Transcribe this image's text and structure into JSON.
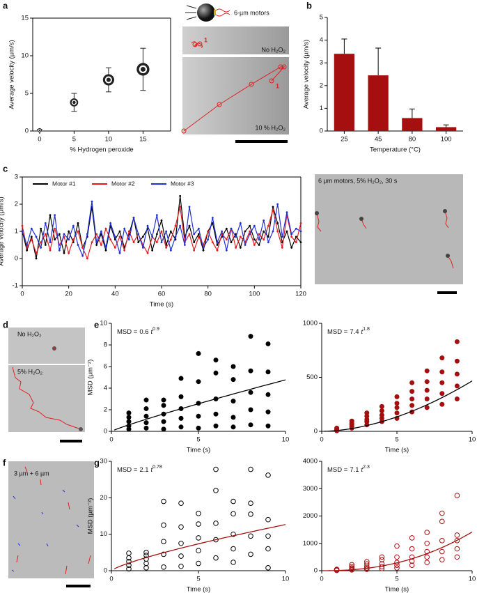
{
  "panel_labels": [
    "a",
    "b",
    "c",
    "d",
    "e",
    "f",
    "g"
  ],
  "images": {
    "a": {
      "caption": "6-µm motors",
      "top": "No H₂O₂",
      "bottom": "10 % H₂O₂",
      "marker_top": "1",
      "marker_bottom": "1"
    },
    "c": {
      "caption": "6 µm motors, 5% H₂O₂, 30 s"
    },
    "d": {
      "top": "No H₂O₂",
      "bottom": "5% H₂O₂"
    },
    "f": {
      "caption": "3 µm + 6 µm"
    }
  },
  "chart_data": [
    {
      "type": "errorscatter",
      "x": [
        0,
        5,
        10,
        15
      ],
      "values": [
        0.1,
        3.8,
        6.8,
        8.2
      ],
      "errors": [
        0.1,
        1.2,
        1.6,
        2.8
      ],
      "color": "#222222",
      "xlim": [
        -1,
        19
      ],
      "xticks": [
        0,
        5,
        10,
        15
      ],
      "ylim": [
        0,
        15
      ],
      "yticks": [
        0,
        5,
        10,
        15
      ],
      "xlabel": "% Hydrogen peroxide",
      "ylabel": "Average velocity (µm/s)"
    },
    {
      "type": "bar",
      "categories": [
        "25",
        "45",
        "80",
        "100"
      ],
      "values": [
        3.4,
        2.45,
        0.57,
        0.17
      ],
      "errors": [
        0.65,
        1.2,
        0.4,
        0.1
      ],
      "color": "#a50f0f",
      "ylim": [
        0,
        5
      ],
      "yticks": [
        0,
        1,
        2,
        3,
        4,
        5
      ],
      "xlabel": "Temperature (°C)",
      "ylabel": "Average velocity (µm/s)"
    },
    {
      "type": "line",
      "legend": "top-left",
      "x": [
        0,
        2,
        4,
        6,
        8,
        10,
        12,
        14,
        16,
        18,
        20,
        22,
        24,
        26,
        28,
        30,
        32,
        34,
        36,
        38,
        40,
        42,
        44,
        46,
        48,
        50,
        52,
        54,
        56,
        58,
        60,
        62,
        64,
        66,
        68,
        70,
        72,
        74,
        76,
        78,
        80,
        82,
        84,
        86,
        88,
        90,
        92,
        94,
        96,
        98,
        100,
        102,
        104,
        106,
        108,
        110,
        112,
        114,
        116,
        118,
        120
      ],
      "series": [
        {
          "name": "Motor #1",
          "color": "#000000",
          "values": [
            1.0,
            0.3,
            0.8,
            0.0,
            1.1,
            0.5,
            1.6,
            0.7,
            0.9,
            0.2,
            1.0,
            0.6,
            1.3,
            0.4,
            0.8,
            1.9,
            0.5,
            0.9,
            0.3,
            1.2,
            0.7,
            1.0,
            0.4,
            0.9,
            1.5,
            0.6,
            0.8,
            1.1,
            0.3,
            0.9,
            1.4,
            0.5,
            1.0,
            0.7,
            2.3,
            0.8,
            1.2,
            0.6,
            0.9,
            0.3,
            1.0,
            1.3,
            0.5,
            0.8,
            1.1,
            0.6,
            0.9,
            0.4,
            1.0,
            1.2,
            0.7,
            0.5,
            1.0,
            0.8,
            1.9,
            1.3,
            0.6,
            1.0,
            0.4,
            0.8,
            0.6
          ]
        },
        {
          "name": "Motor #2",
          "color": "#e41a1c",
          "values": [
            1.2,
            0.4,
            0.7,
            0.2,
            0.6,
            0.9,
            0.3,
            1.1,
            0.5,
            0.8,
            0.2,
            0.7,
            1.0,
            0.4,
            0.0,
            0.6,
            0.9,
            0.5,
            1.1,
            0.7,
            0.4,
            0.8,
            0.3,
            1.0,
            0.6,
            0.9,
            0.5,
            0.2,
            0.8,
            0.6,
            1.0,
            0.4,
            0.7,
            1.2,
            1.9,
            0.6,
            0.9,
            0.3,
            0.8,
            0.5,
            1.0,
            0.6,
            0.3,
            0.9,
            0.7,
            1.1,
            0.4,
            0.8,
            0.6,
            1.0,
            0.5,
            0.9,
            0.7,
            1.2,
            1.8,
            1.0,
            0.4,
            1.6,
            0.8,
            0.6,
            1.3
          ]
        },
        {
          "name": "Motor #3",
          "color": "#1f2fd6",
          "values": [
            1.0,
            0.5,
            1.1,
            0.8,
            0.4,
            1.3,
            0.6,
            1.6,
            0.3,
            0.9,
            0.7,
            1.2,
            0.5,
            0.1,
            0.9,
            2.1,
            0.6,
            1.0,
            0.4,
            1.3,
            0.8,
            0.2,
            1.1,
            0.7,
            1.5,
            0.9,
            0.4,
            1.2,
            0.8,
            1.6,
            0.6,
            1.0,
            0.3,
            0.8,
            1.2,
            0.5,
            1.9,
            0.9,
            1.1,
            0.4,
            0.7,
            1.5,
            0.6,
            1.0,
            0.3,
            1.1,
            0.8,
            1.3,
            0.5,
            0.9,
            1.2,
            0.7,
            1.4,
            0.6,
            1.0,
            2.0,
            0.8,
            1.7,
            0.9,
            1.1,
            1.0
          ]
        }
      ],
      "xlim": [
        0,
        120
      ],
      "xticks": [
        0,
        20,
        40,
        60,
        80,
        100,
        120
      ],
      "ylim": [
        -1,
        3
      ],
      "yticks": [
        -1,
        0,
        1,
        2,
        3
      ],
      "xlabel": "Time (s)",
      "ylabel": "Average velocity (µm/s)"
    },
    {
      "type": "scatter",
      "color": "#000000",
      "filled": true,
      "x": [
        1,
        1,
        1,
        1,
        1,
        2,
        2,
        2,
        2,
        2,
        3,
        3,
        3,
        3,
        3,
        4,
        4,
        4,
        4,
        4,
        5,
        5,
        5,
        5,
        5,
        6,
        6,
        6,
        6,
        6,
        7,
        7,
        7,
        7,
        7,
        8,
        8,
        8,
        8,
        8,
        9,
        9,
        9,
        9,
        9
      ],
      "y": [
        0.2,
        0.5,
        0.9,
        1.3,
        1.7,
        0.3,
        0.8,
        1.4,
        2.1,
        2.9,
        0.2,
        0.9,
        1.6,
        2.4,
        2.9,
        0.4,
        1.2,
        2.1,
        3.2,
        4.9,
        0.3,
        1.4,
        2.6,
        4.6,
        7.2,
        0.5,
        1.6,
        3.0,
        5.4,
        6.6,
        0.4,
        1.3,
        2.8,
        4.8,
        6.0,
        0.6,
        2.0,
        3.6,
        5.6,
        8.8,
        0.5,
        1.8,
        3.4,
        5.5,
        8.1
      ],
      "annotation": {
        "lhs": "MSD =",
        "coefficient": 0.6,
        "variable": "t",
        "exponent": 0.9
      },
      "fit_color": "#000000",
      "xlim": [
        0,
        10
      ],
      "xticks": [
        0,
        5,
        10
      ],
      "ylim": [
        0,
        10
      ],
      "yticks": [
        0,
        2,
        4,
        6,
        8,
        10
      ],
      "xlabel": "Time (s)",
      "ylabel": "MSD (µm⁻²)"
    },
    {
      "type": "scatter",
      "color": "#a50f0f",
      "filled": true,
      "x": [
        1,
        1,
        1,
        1,
        1,
        2,
        2,
        2,
        2,
        2,
        3,
        3,
        3,
        3,
        3,
        4,
        4,
        4,
        4,
        4,
        5,
        5,
        5,
        5,
        5,
        6,
        6,
        6,
        6,
        6,
        7,
        7,
        7,
        7,
        7,
        8,
        8,
        8,
        8,
        8,
        9,
        9,
        9,
        9,
        9
      ],
      "y": [
        5,
        10,
        15,
        20,
        30,
        30,
        45,
        60,
        75,
        95,
        60,
        90,
        110,
        140,
        170,
        90,
        120,
        150,
        190,
        230,
        120,
        170,
        220,
        260,
        320,
        180,
        240,
        300,
        370,
        450,
        220,
        300,
        380,
        460,
        560,
        250,
        350,
        450,
        550,
        680,
        300,
        420,
        530,
        650,
        830
      ],
      "annotation": {
        "lhs": "MSD =",
        "coefficient": 7.4,
        "variable": "t",
        "exponent": 1.8
      },
      "fit_color": "#000000",
      "xlim": [
        0,
        10
      ],
      "xticks": [
        0,
        5,
        10
      ],
      "ylim": [
        0,
        1000
      ],
      "yticks": [
        0,
        500,
        1000
      ],
      "xlabel": "Time (s)"
    },
    {
      "type": "scatter",
      "color": "#000000",
      "filled": false,
      "x": [
        1,
        1,
        1,
        1,
        1,
        2,
        2,
        2,
        2,
        2,
        3,
        3,
        3,
        3,
        3,
        4,
        4,
        4,
        4,
        4,
        5,
        5,
        5,
        5,
        5,
        6,
        6,
        6,
        6,
        6,
        7,
        7,
        7,
        7,
        7,
        8,
        8,
        8,
        8,
        8,
        9,
        9,
        9,
        9,
        9
      ],
      "y": [
        0.5,
        1.5,
        2.5,
        3.5,
        4.8,
        0.8,
        2.0,
        3.2,
        4.2,
        5.0,
        1.0,
        4.5,
        8.0,
        12.5,
        19.0,
        1.2,
        4.0,
        7.5,
        12.0,
        18.5,
        2.0,
        5.5,
        9.0,
        12.8,
        15.7,
        3.5,
        8.5,
        13.0,
        22.0,
        27.8,
        2.3,
        6.0,
        10.0,
        15.6,
        19.0,
        4.5,
        9.5,
        15.5,
        18.5,
        27.8,
        0.8,
        6.0,
        9.5,
        14.0,
        26.2
      ],
      "annotation": {
        "lhs": "MSD =",
        "coefficient": 2.1,
        "variable": "t",
        "exponent": 0.78
      },
      "fit_color": "#a50f0f",
      "xlim": [
        0,
        10
      ],
      "xticks": [
        0,
        5,
        10
      ],
      "ylim": [
        0,
        30
      ],
      "yticks": [
        0,
        10,
        20,
        30
      ],
      "xlabel": "Time (s)",
      "ylabel": "MSD (µm⁻²)"
    },
    {
      "type": "scatter",
      "color": "#a50f0f",
      "filled": false,
      "x": [
        1,
        1,
        1,
        1,
        1,
        2,
        2,
        2,
        2,
        2,
        3,
        3,
        3,
        3,
        3,
        4,
        4,
        4,
        4,
        4,
        5,
        5,
        5,
        5,
        5,
        6,
        6,
        6,
        6,
        6,
        7,
        7,
        7,
        7,
        7,
        8,
        8,
        8,
        8,
        8,
        9,
        9,
        9,
        9,
        9
      ],
      "y": [
        10,
        20,
        30,
        40,
        50,
        30,
        60,
        100,
        150,
        220,
        50,
        100,
        160,
        250,
        330,
        80,
        150,
        250,
        400,
        500,
        100,
        200,
        300,
        500,
        900,
        200,
        350,
        500,
        800,
        1200,
        300,
        500,
        700,
        1000,
        1400,
        400,
        700,
        1100,
        1800,
        2100,
        500,
        800,
        1100,
        1300,
        2750
      ],
      "annotation": {
        "lhs": "MSD =",
        "coefficient": 7.1,
        "variable": "t",
        "exponent": 2.3
      },
      "fit_color": "#a50f0f",
      "xlim": [
        0,
        10
      ],
      "xticks": [
        0,
        5,
        10
      ],
      "ylim": [
        0,
        4000
      ],
      "yticks": [
        0,
        1000,
        2000,
        3000,
        4000
      ],
      "xlabel": "Time (s)"
    }
  ]
}
